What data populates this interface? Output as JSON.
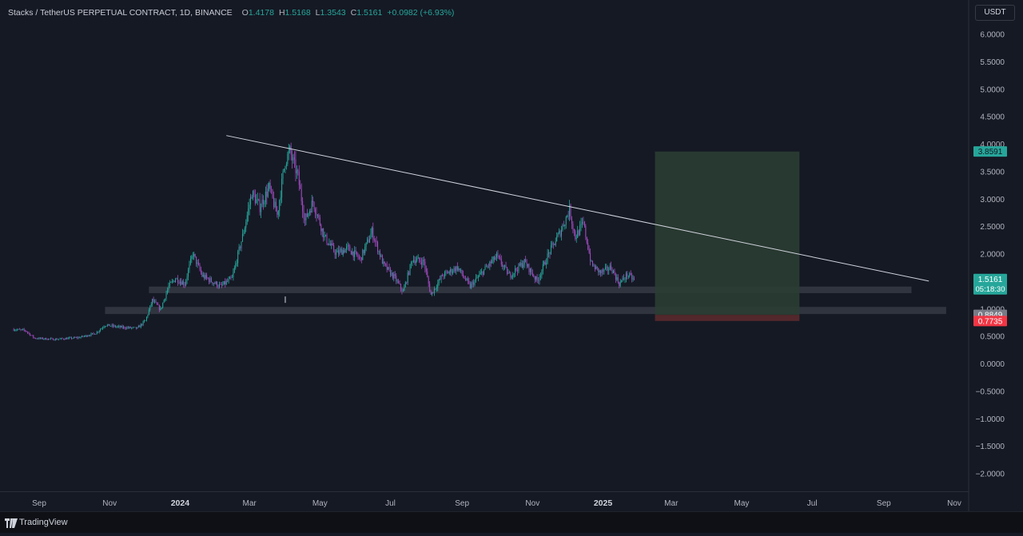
{
  "header": {
    "symbol": "Stacks / TetherUS PERPETUAL CONTRACT, 1D, BINANCE",
    "open_label": "O",
    "open_value": "1.4178",
    "high_label": "H",
    "high_value": "1.5168",
    "low_label": "L",
    "low_value": "1.3543",
    "close_label": "C",
    "close_value": "1.5161",
    "change": "+0.0982 (+6.93%)"
  },
  "currency_button": "USDT",
  "footer": {
    "brand": "TradingView"
  },
  "colors": {
    "background": "#151924",
    "up": "#26a69a",
    "down": "#a04bbf",
    "target_zone": "#2a3d33",
    "stop_zone": "#5a2a2e",
    "trendline": "#d1d4dc",
    "support": "#3a3e48"
  },
  "chart_data": {
    "type": "candlestick",
    "price_axis": {
      "min": -2.2,
      "max": 6.2,
      "ticks": [
        "6.0000",
        "5.5000",
        "5.0000",
        "4.5000",
        "4.0000",
        "3.5000",
        "3.0000",
        "2.5000",
        "2.0000",
        "1.0000",
        "0.5000",
        "0.0000",
        "−0.5000",
        "−1.0000",
        "−1.5000",
        "−2.0000"
      ],
      "tick_values": [
        6,
        5.5,
        5,
        4.5,
        4,
        3.5,
        3,
        2.5,
        2,
        1,
        0.5,
        0,
        -0.5,
        -1,
        -1.5,
        -2
      ]
    },
    "time_axis": {
      "labels": [
        "Sep",
        "Nov",
        "2024",
        "Mar",
        "May",
        "Jul",
        "Sep",
        "Nov",
        "2025",
        "Mar",
        "May",
        "Jul",
        "Sep",
        "Nov"
      ],
      "label_dates": [
        "2023-09-01",
        "2023-11-01",
        "2024-01-01",
        "2024-03-01",
        "2024-05-01",
        "2024-07-01",
        "2024-09-01",
        "2024-11-01",
        "2025-01-01",
        "2025-03-01",
        "2025-05-01",
        "2025-07-01",
        "2025-09-01",
        "2025-11-01"
      ],
      "bold": [
        "2024",
        "2025"
      ]
    },
    "price_path": [
      [
        "2023-08-10",
        0.62
      ],
      [
        "2023-08-20",
        0.6
      ],
      [
        "2023-08-28",
        0.46
      ],
      [
        "2023-09-15",
        0.44
      ],
      [
        "2023-10-05",
        0.47
      ],
      [
        "2023-10-20",
        0.55
      ],
      [
        "2023-10-28",
        0.7
      ],
      [
        "2023-11-10",
        0.66
      ],
      [
        "2023-11-25",
        0.64
      ],
      [
        "2023-12-02",
        0.78
      ],
      [
        "2023-12-08",
        1.15
      ],
      [
        "2023-12-15",
        0.98
      ],
      [
        "2023-12-22",
        1.4
      ],
      [
        "2023-12-28",
        1.55
      ],
      [
        "2024-01-05",
        1.45
      ],
      [
        "2024-01-12",
        2.0
      ],
      [
        "2024-01-20",
        1.6
      ],
      [
        "2024-01-28",
        1.5
      ],
      [
        "2024-02-05",
        1.4
      ],
      [
        "2024-02-15",
        1.55
      ],
      [
        "2024-02-25",
        2.4
      ],
      [
        "2024-03-03",
        3.1
      ],
      [
        "2024-03-10",
        2.85
      ],
      [
        "2024-03-18",
        3.2
      ],
      [
        "2024-03-25",
        2.7
      ],
      [
        "2024-04-01",
        3.7
      ],
      [
        "2024-04-05",
        3.85
      ],
      [
        "2024-04-12",
        3.4
      ],
      [
        "2024-04-18",
        2.6
      ],
      [
        "2024-04-25",
        2.95
      ],
      [
        "2024-05-05",
        2.3
      ],
      [
        "2024-05-15",
        2.0
      ],
      [
        "2024-05-25",
        2.1
      ],
      [
        "2024-06-05",
        1.9
      ],
      [
        "2024-06-15",
        2.4
      ],
      [
        "2024-06-25",
        1.8
      ],
      [
        "2024-07-05",
        1.55
      ],
      [
        "2024-07-12",
        1.3
      ],
      [
        "2024-07-20",
        1.9
      ],
      [
        "2024-07-30",
        1.85
      ],
      [
        "2024-08-05",
        1.25
      ],
      [
        "2024-08-15",
        1.6
      ],
      [
        "2024-08-28",
        1.75
      ],
      [
        "2024-09-08",
        1.4
      ],
      [
        "2024-09-20",
        1.7
      ],
      [
        "2024-10-01",
        1.95
      ],
      [
        "2024-10-12",
        1.6
      ],
      [
        "2024-10-25",
        1.85
      ],
      [
        "2024-11-05",
        1.5
      ],
      [
        "2024-11-15",
        2.0
      ],
      [
        "2024-11-25",
        2.4
      ],
      [
        "2024-12-03",
        2.8
      ],
      [
        "2024-12-08",
        2.3
      ],
      [
        "2024-12-15",
        2.55
      ],
      [
        "2024-12-22",
        1.8
      ],
      [
        "2024-12-30",
        1.65
      ],
      [
        "2025-01-08",
        1.75
      ],
      [
        "2025-01-15",
        1.45
      ],
      [
        "2025-01-22",
        1.62
      ],
      [
        "2025-01-28",
        1.52
      ]
    ],
    "volume_marker": {
      "date": "2024-04-01",
      "price": 1.1
    },
    "trendline": {
      "from": [
        "2024-02-10",
        4.15
      ],
      "to": [
        "2025-10-10",
        1.5
      ]
    },
    "support_zones": [
      {
        "from": "2023-12-05",
        "to": "2025-09-25",
        "top": 1.4,
        "bottom": 1.28
      },
      {
        "from": "2023-10-28",
        "to": "2025-10-25",
        "top": 1.03,
        "bottom": 0.9
      }
    ],
    "long_position": {
      "from": "2025-02-15",
      "to": "2025-06-20",
      "target": 3.8591,
      "entry": 0.8849,
      "stop": 0.7735
    },
    "price_labels": [
      {
        "value": 3.8591,
        "text": "3.8591",
        "color": "#26a69a",
        "text_color": "#131722"
      },
      {
        "value": 1.5161,
        "text": "1.5161",
        "sub": "05:18:30",
        "color": "#26a69a",
        "text_color": "#ffffff"
      },
      {
        "value": 0.8849,
        "text": "0.8849",
        "color": "#787b86",
        "text_color": "#ffffff"
      },
      {
        "value": 0.7735,
        "text": "0.7735",
        "color": "#f23645",
        "text_color": "#ffffff"
      }
    ]
  }
}
